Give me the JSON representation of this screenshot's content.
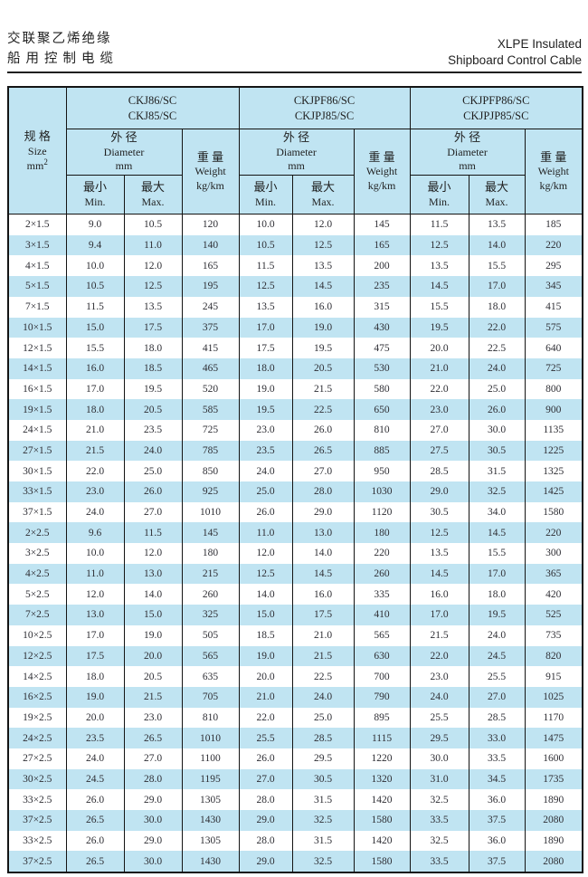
{
  "page_header": {
    "title_zh_line1": "交联聚乙烯绝缘",
    "title_zh_line2": "船用控制电缆",
    "title_en_line1": "XLPE Insulated",
    "title_en_line2": "Shipboard Control Cable"
  },
  "table": {
    "size_header": {
      "zh": "规 格",
      "en": "Size",
      "unit": "mm",
      "unit_sup": "2"
    },
    "groups": [
      {
        "model_line1": "CKJ86/SC",
        "model_line2": "CKJ85/SC"
      },
      {
        "model_line1": "CKJPF86/SC",
        "model_line2": "CKJPJ85/SC"
      },
      {
        "model_line1": "CKJPFP86/SC",
        "model_line2": "CKJPJP85/SC"
      }
    ],
    "diameter_header": {
      "zh": "外 径",
      "en": "Diameter",
      "unit": "mm"
    },
    "weight_header": {
      "zh": "重 量",
      "en": "Weight",
      "unit": "kg/km"
    },
    "min_header": {
      "zh": "最小",
      "en": "Min."
    },
    "max_header": {
      "zh": "最大",
      "en": "Max."
    },
    "rows": [
      [
        "2×1.5",
        "9.0",
        "10.5",
        "120",
        "10.0",
        "12.0",
        "145",
        "11.5",
        "13.5",
        "185"
      ],
      [
        "3×1.5",
        "9.4",
        "11.0",
        "140",
        "10.5",
        "12.5",
        "165",
        "12.5",
        "14.0",
        "220"
      ],
      [
        "4×1.5",
        "10.0",
        "12.0",
        "165",
        "11.5",
        "13.5",
        "200",
        "13.5",
        "15.5",
        "295"
      ],
      [
        "5×1.5",
        "10.5",
        "12.5",
        "195",
        "12.5",
        "14.5",
        "235",
        "14.5",
        "17.0",
        "345"
      ],
      [
        "7×1.5",
        "11.5",
        "13.5",
        "245",
        "13.5",
        "16.0",
        "315",
        "15.5",
        "18.0",
        "415"
      ],
      [
        "10×1.5",
        "15.0",
        "17.5",
        "375",
        "17.0",
        "19.0",
        "430",
        "19.5",
        "22.0",
        "575"
      ],
      [
        "12×1.5",
        "15.5",
        "18.0",
        "415",
        "17.5",
        "19.5",
        "475",
        "20.0",
        "22.5",
        "640"
      ],
      [
        "14×1.5",
        "16.0",
        "18.5",
        "465",
        "18.0",
        "20.5",
        "530",
        "21.0",
        "24.0",
        "725"
      ],
      [
        "16×1.5",
        "17.0",
        "19.5",
        "520",
        "19.0",
        "21.5",
        "580",
        "22.0",
        "25.0",
        "800"
      ],
      [
        "19×1.5",
        "18.0",
        "20.5",
        "585",
        "19.5",
        "22.5",
        "650",
        "23.0",
        "26.0",
        "900"
      ],
      [
        "24×1.5",
        "21.0",
        "23.5",
        "725",
        "23.0",
        "26.0",
        "810",
        "27.0",
        "30.0",
        "1135"
      ],
      [
        "27×1.5",
        "21.5",
        "24.0",
        "785",
        "23.5",
        "26.5",
        "885",
        "27.5",
        "30.5",
        "1225"
      ],
      [
        "30×1.5",
        "22.0",
        "25.0",
        "850",
        "24.0",
        "27.0",
        "950",
        "28.5",
        "31.5",
        "1325"
      ],
      [
        "33×1.5",
        "23.0",
        "26.0",
        "925",
        "25.0",
        "28.0",
        "1030",
        "29.0",
        "32.5",
        "1425"
      ],
      [
        "37×1.5",
        "24.0",
        "27.0",
        "1010",
        "26.0",
        "29.0",
        "1120",
        "30.5",
        "34.0",
        "1580"
      ],
      [
        "2×2.5",
        "9.6",
        "11.5",
        "145",
        "11.0",
        "13.0",
        "180",
        "12.5",
        "14.5",
        "220"
      ],
      [
        "3×2.5",
        "10.0",
        "12.0",
        "180",
        "12.0",
        "14.0",
        "220",
        "13.5",
        "15.5",
        "300"
      ],
      [
        "4×2.5",
        "11.0",
        "13.0",
        "215",
        "12.5",
        "14.5",
        "260",
        "14.5",
        "17.0",
        "365"
      ],
      [
        "5×2.5",
        "12.0",
        "14.0",
        "260",
        "14.0",
        "16.0",
        "335",
        "16.0",
        "18.0",
        "420"
      ],
      [
        "7×2.5",
        "13.0",
        "15.0",
        "325",
        "15.0",
        "17.5",
        "410",
        "17.0",
        "19.5",
        "525"
      ],
      [
        "10×2.5",
        "17.0",
        "19.0",
        "505",
        "18.5",
        "21.0",
        "565",
        "21.5",
        "24.0",
        "735"
      ],
      [
        "12×2.5",
        "17.5",
        "20.0",
        "565",
        "19.0",
        "21.5",
        "630",
        "22.0",
        "24.5",
        "820"
      ],
      [
        "14×2.5",
        "18.0",
        "20.5",
        "635",
        "20.0",
        "22.5",
        "700",
        "23.0",
        "25.5",
        "915"
      ],
      [
        "16×2.5",
        "19.0",
        "21.5",
        "705",
        "21.0",
        "24.0",
        "790",
        "24.0",
        "27.0",
        "1025"
      ],
      [
        "19×2.5",
        "20.0",
        "23.0",
        "810",
        "22.0",
        "25.0",
        "895",
        "25.5",
        "28.5",
        "1170"
      ],
      [
        "24×2.5",
        "23.5",
        "26.5",
        "1010",
        "25.5",
        "28.5",
        "1115",
        "29.5",
        "33.0",
        "1475"
      ],
      [
        "27×2.5",
        "24.0",
        "27.0",
        "1100",
        "26.0",
        "29.5",
        "1220",
        "30.0",
        "33.5",
        "1600"
      ],
      [
        "30×2.5",
        "24.5",
        "28.0",
        "1195",
        "27.0",
        "30.5",
        "1320",
        "31.0",
        "34.5",
        "1735"
      ],
      [
        "33×2.5",
        "26.0",
        "29.0",
        "1305",
        "28.0",
        "31.5",
        "1420",
        "32.5",
        "36.0",
        "1890"
      ],
      [
        "37×2.5",
        "26.5",
        "30.0",
        "1430",
        "29.0",
        "32.5",
        "1580",
        "33.5",
        "37.5",
        "2080"
      ],
      [
        "33×2.5",
        "26.0",
        "29.0",
        "1305",
        "28.0",
        "31.5",
        "1420",
        "32.5",
        "36.0",
        "1890"
      ],
      [
        "37×2.5",
        "26.5",
        "30.0",
        "1430",
        "29.0",
        "32.5",
        "1580",
        "33.5",
        "37.5",
        "2080"
      ]
    ]
  },
  "colors": {
    "stripe_blue": "#c0e4f2",
    "table_border": "#141414",
    "text_dark": "#1f1f1f",
    "number_text": "#2e2e34"
  }
}
